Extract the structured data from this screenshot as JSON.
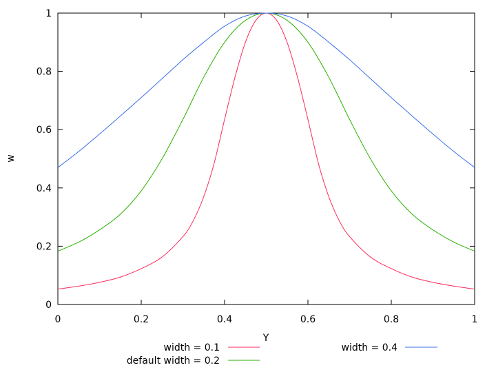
{
  "chart_data": {
    "type": "line",
    "xlabel": "Y",
    "ylabel": "w",
    "xlim": [
      0,
      1
    ],
    "ylim": [
      0,
      1
    ],
    "xticks": [
      0,
      0.2,
      0.4,
      0.6,
      0.8,
      1
    ],
    "xtick_labels": [
      "0",
      "0.2",
      "0.4",
      "0.6",
      "0.8",
      "1"
    ],
    "yticks": [
      0,
      0.2,
      0.4,
      0.6,
      0.8,
      1
    ],
    "ytick_labels": [
      "0",
      "0.2",
      "0.4",
      "0.6",
      "0.8",
      "1"
    ],
    "grid": false,
    "legend_position": "bottom",
    "series": [
      {
        "name": "width = 0.1",
        "color": "#ff2a5a",
        "x": [
          0,
          0.05,
          0.1,
          0.15,
          0.2,
          0.25,
          0.3,
          0.325,
          0.35,
          0.375,
          0.4,
          0.425,
          0.45,
          0.475,
          0.5,
          0.525,
          0.55,
          0.575,
          0.6,
          0.625,
          0.65,
          0.675,
          0.7,
          0.75,
          0.8,
          0.85,
          0.9,
          0.95,
          1
        ],
        "y": [
          0.053,
          0.063,
          0.076,
          0.094,
          0.123,
          0.163,
          0.233,
          0.288,
          0.37,
          0.485,
          0.635,
          0.78,
          0.9,
          0.975,
          1,
          0.975,
          0.9,
          0.78,
          0.635,
          0.485,
          0.37,
          0.288,
          0.233,
          0.163,
          0.123,
          0.094,
          0.076,
          0.063,
          0.053
        ]
      },
      {
        "name": "default width = 0.2",
        "color": "#2ab000",
        "x": [
          0,
          0.05,
          0.1,
          0.15,
          0.2,
          0.25,
          0.3,
          0.35,
          0.4,
          0.45,
          0.5,
          0.55,
          0.6,
          0.65,
          0.7,
          0.75,
          0.8,
          0.85,
          0.9,
          0.95,
          1
        ],
        "y": [
          0.183,
          0.214,
          0.256,
          0.31,
          0.39,
          0.5,
          0.635,
          0.78,
          0.9,
          0.975,
          1,
          0.975,
          0.9,
          0.78,
          0.635,
          0.5,
          0.39,
          0.31,
          0.256,
          0.214,
          0.183
        ]
      },
      {
        "name": "width = 0.4",
        "color": "#3a6fe8",
        "x": [
          0,
          0.05,
          0.1,
          0.15,
          0.2,
          0.25,
          0.3,
          0.35,
          0.4,
          0.45,
          0.5,
          0.55,
          0.6,
          0.65,
          0.7,
          0.75,
          0.8,
          0.85,
          0.9,
          0.95,
          1
        ],
        "y": [
          0.47,
          0.525,
          0.585,
          0.647,
          0.71,
          0.775,
          0.84,
          0.9,
          0.955,
          0.99,
          1,
          0.99,
          0.955,
          0.9,
          0.84,
          0.775,
          0.71,
          0.647,
          0.585,
          0.525,
          0.47
        ]
      }
    ]
  }
}
